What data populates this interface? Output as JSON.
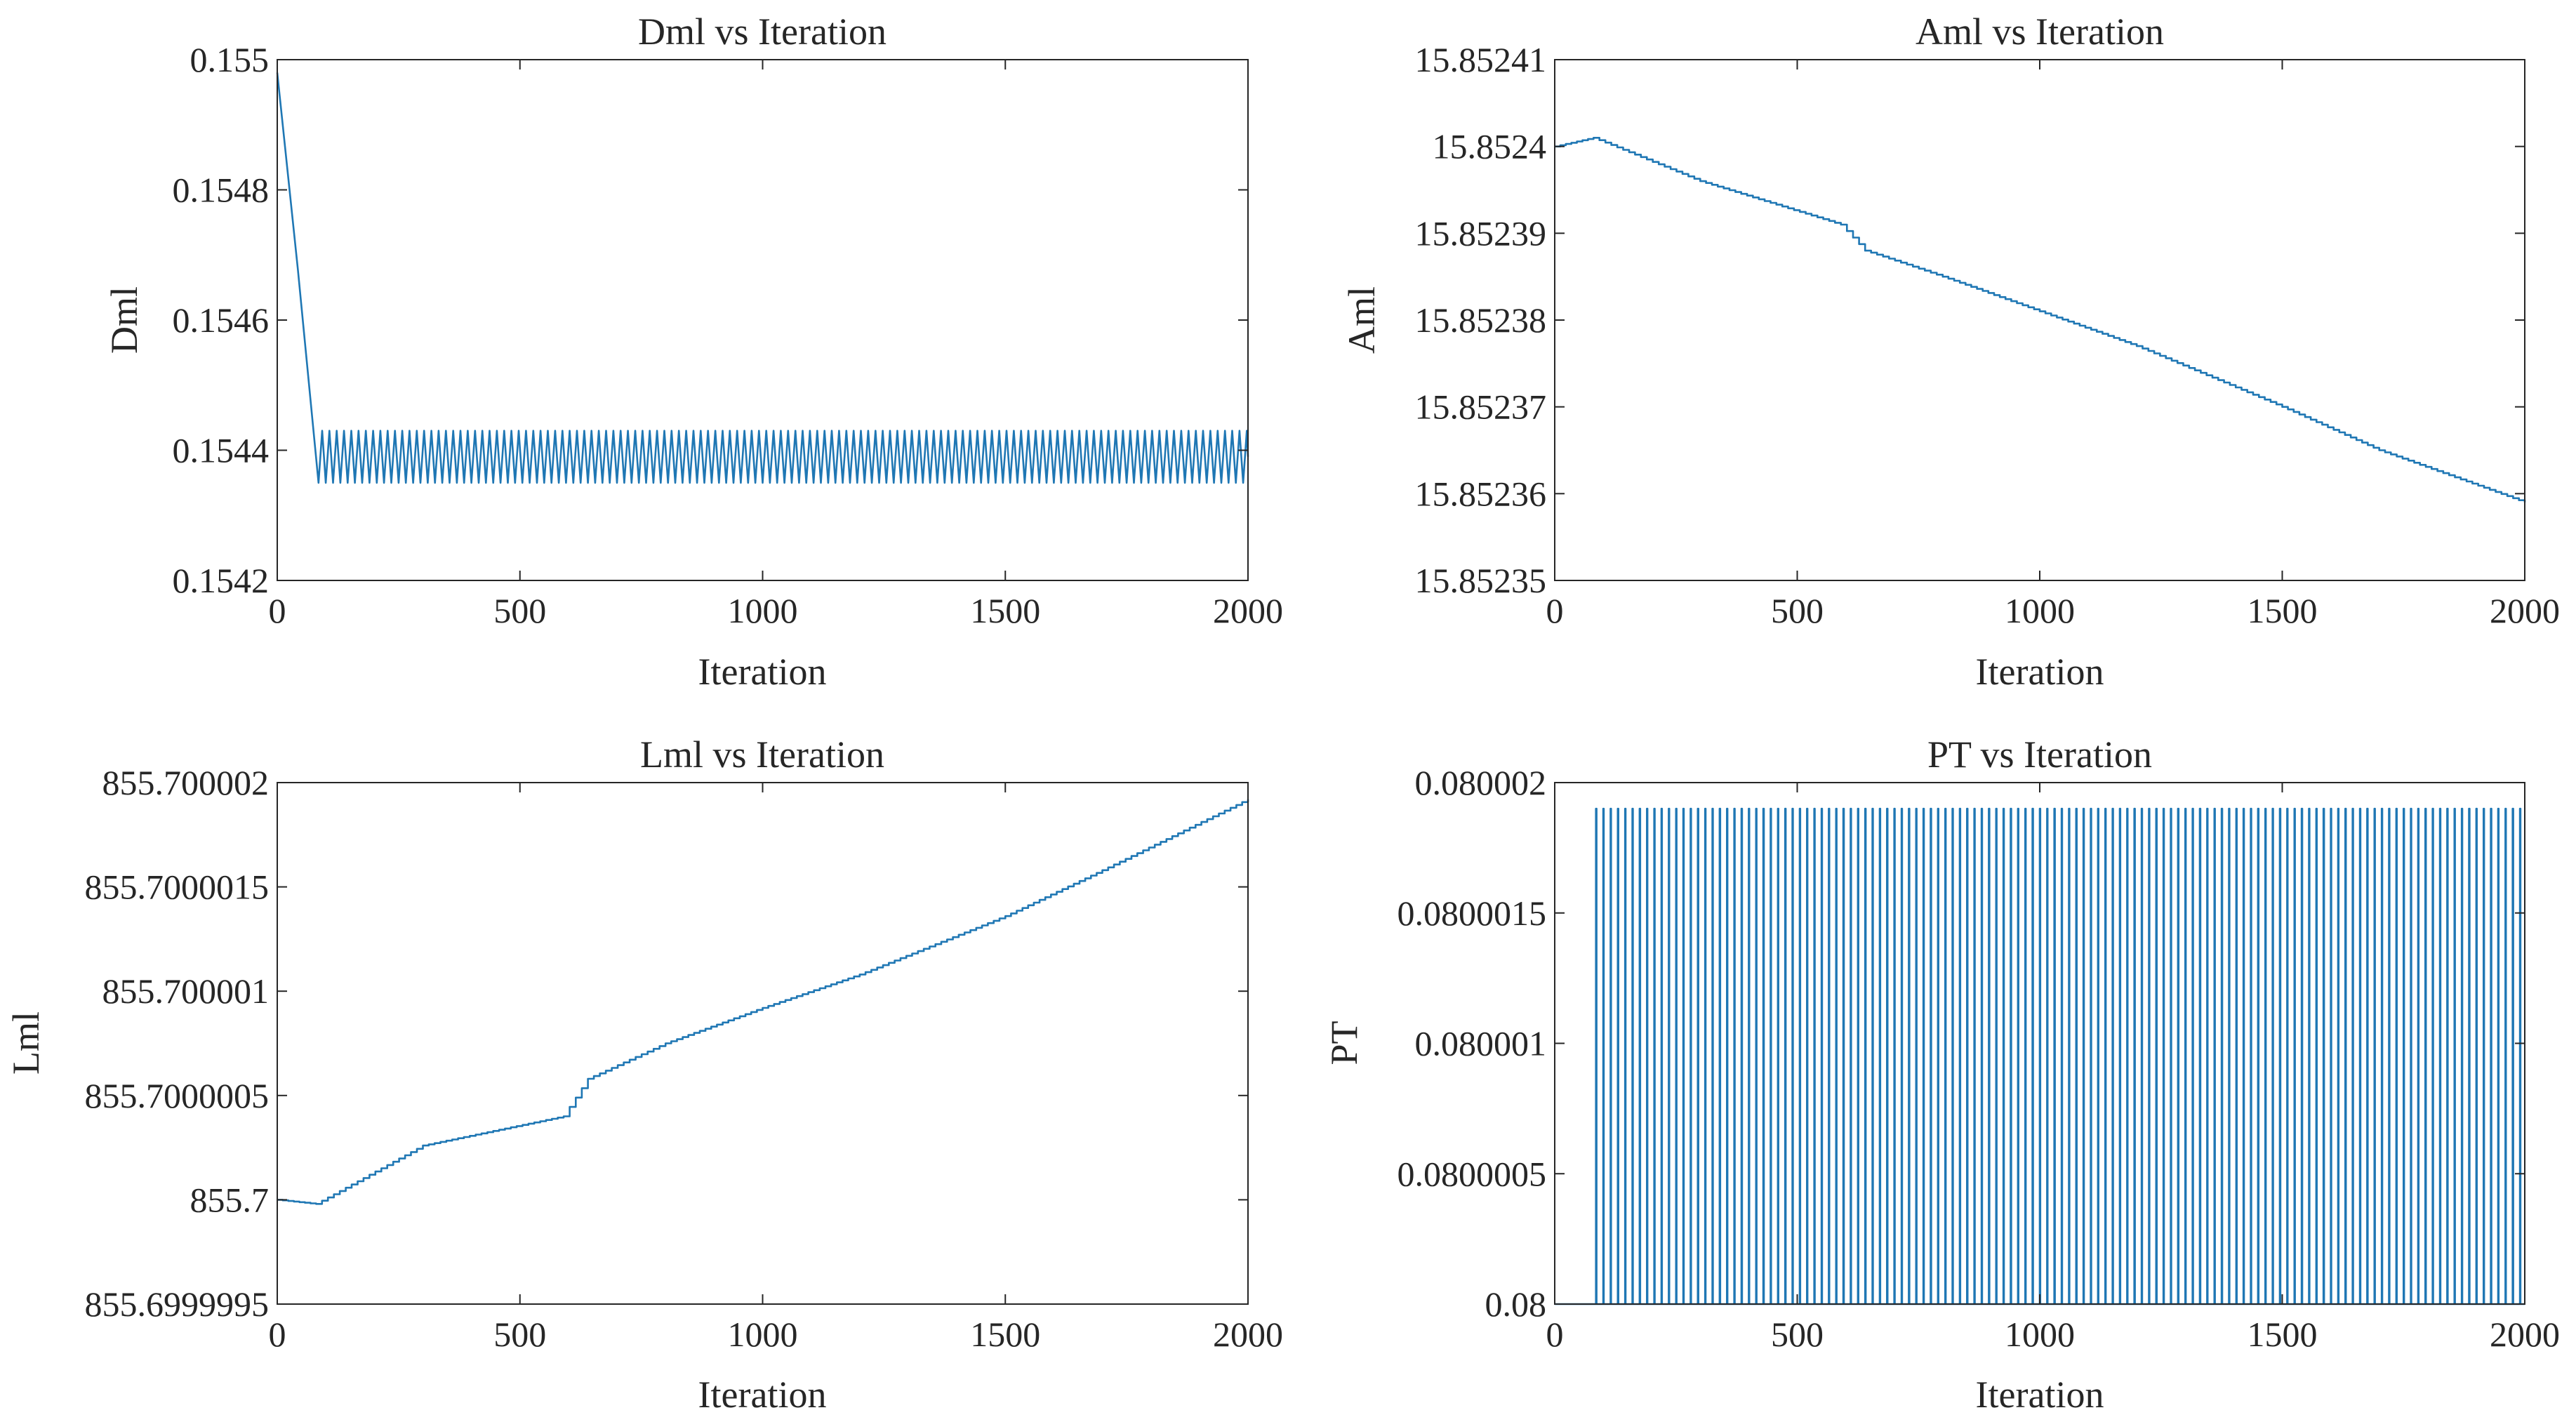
{
  "colors": {
    "line": "#1f77b4",
    "axis": "#262626",
    "background": "#ffffff"
  },
  "chart_data": [
    {
      "type": "line",
      "title": "Dml vs Iteration",
      "xlabel": "Iteration",
      "ylabel": "Dml",
      "xlim": [
        0,
        2000
      ],
      "ylim": [
        0.1542,
        0.155
      ],
      "xticks": [
        0,
        500,
        1000,
        1500,
        2000
      ],
      "xtick_labels": [
        "0",
        "500",
        "1000",
        "1500",
        "2000"
      ],
      "yticks": [
        0.1542,
        0.1544,
        0.1546,
        0.1548,
        0.155
      ],
      "ytick_labels": [
        "0.1542",
        "0.1544",
        "0.1546",
        "0.1548",
        "0.155"
      ],
      "series": [
        {
          "name": "Dml",
          "pattern": "decay-then-oscillate",
          "start": 0.15498,
          "settle_x": 85,
          "osc_low": 0.15435,
          "osc_high": 0.15443,
          "osc_period": 15
        }
      ]
    },
    {
      "type": "line",
      "title": "Aml vs Iteration",
      "xlabel": "Iteration",
      "ylabel": "Aml",
      "xlim": [
        0,
        2000
      ],
      "ylim": [
        15.85235,
        15.85241
      ],
      "xticks": [
        0,
        500,
        1000,
        1500,
        2000
      ],
      "xtick_labels": [
        "0",
        "500",
        "1000",
        "1500",
        "2000"
      ],
      "yticks": [
        15.85235,
        15.85236,
        15.85237,
        15.85238,
        15.85239,
        15.8524,
        15.85241
      ],
      "ytick_labels": [
        "15.85235",
        "15.85236",
        "15.85237",
        "15.85238",
        "15.85239",
        "15.8524",
        "15.85241"
      ],
      "series": [
        {
          "name": "Aml",
          "pattern": "staircase",
          "x": [
            0,
            80,
            300,
            590,
            640,
            800,
            1000,
            1200,
            1500,
            1700,
            2000
          ],
          "y": [
            15.8524,
            15.852401,
            15.852396,
            15.852391,
            15.852388,
            15.852385,
            15.852381,
            15.852377,
            15.85237,
            15.852365,
            15.852359
          ]
        }
      ]
    },
    {
      "type": "line",
      "title": "Lml vs Iteration",
      "xlabel": "Iteration",
      "ylabel": "Lml",
      "xlim": [
        0,
        2000
      ],
      "ylim": [
        855.6999995,
        855.700002
      ],
      "xticks": [
        0,
        500,
        1000,
        1500,
        2000
      ],
      "xtick_labels": [
        "0",
        "500",
        "1000",
        "1500",
        "2000"
      ],
      "yticks": [
        855.6999995,
        855.7,
        855.7000005,
        855.700001,
        855.7000015,
        855.700002
      ],
      "ytick_labels": [
        "855.6999995",
        "855.7",
        "855.7000005",
        "855.700001",
        "855.7000015",
        "855.700002"
      ],
      "series": [
        {
          "name": "Lml",
          "pattern": "staircase",
          "x": [
            0,
            80,
            300,
            590,
            640,
            800,
            1000,
            1200,
            1500,
            1700,
            2000
          ],
          "y": [
            855.7,
            855.69999998,
            855.70000026,
            855.7000004,
            855.70000058,
            855.70000075,
            855.70000092,
            855.70000108,
            855.70000136,
            855.70000158,
            855.70000192
          ]
        }
      ]
    },
    {
      "type": "line",
      "title": "PT vs Iteration",
      "xlabel": "Iteration",
      "ylabel": "PT",
      "xlim": [
        0,
        2000
      ],
      "ylim": [
        0.08,
        0.080002
      ],
      "xticks": [
        0,
        500,
        1000,
        1500,
        2000
      ],
      "xtick_labels": [
        "0",
        "500",
        "1000",
        "1500",
        "2000"
      ],
      "yticks": [
        0.08,
        0.0800005,
        0.080001,
        0.0800015,
        0.080002
      ],
      "ytick_labels": [
        "0.08",
        "0.0800005",
        "0.080001",
        "0.0800015",
        "0.080002"
      ],
      "series": [
        {
          "name": "PT",
          "pattern": "spikes",
          "base": 0.08,
          "peak": 0.0800019,
          "spike_start": 85,
          "spike_period": 15
        }
      ]
    }
  ]
}
